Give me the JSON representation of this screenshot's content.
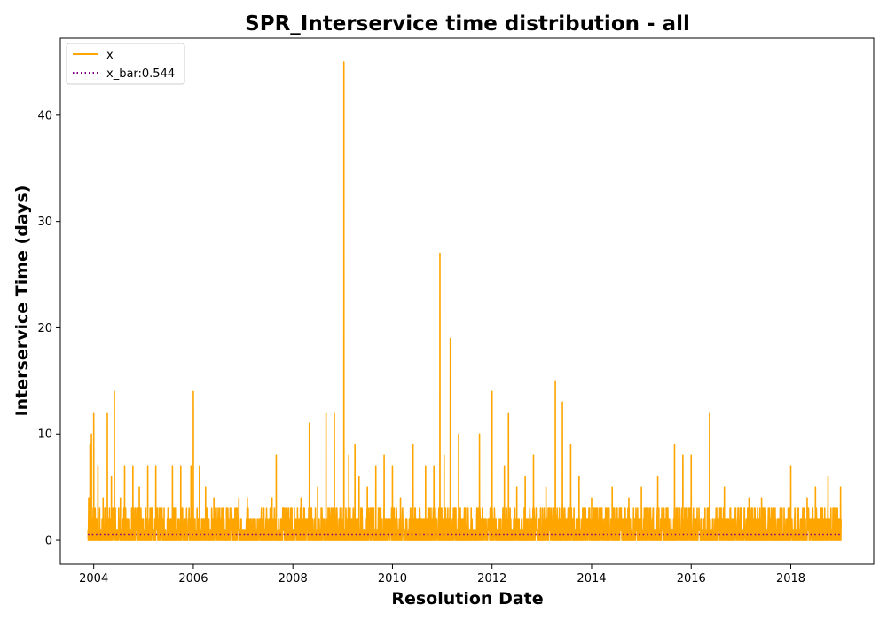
{
  "chart_data": {
    "type": "line",
    "title": "SPR_Interservice time distribution - all",
    "xlabel": "Resolution Date",
    "ylabel": "Interservice Time (days)",
    "xlim": [
      "2003-05-01",
      "2019-09-01"
    ],
    "ylim": [
      -2.25,
      47.25
    ],
    "x_ticks": [
      "2004",
      "2006",
      "2008",
      "2010",
      "2012",
      "2014",
      "2016",
      "2018"
    ],
    "y_ticks": [
      0,
      10,
      20,
      30,
      40
    ],
    "grid": false,
    "legend": {
      "placement": "top-left",
      "entries": [
        {
          "label": "x",
          "color": "#FFA500",
          "style": "solid"
        },
        {
          "label": "x_bar:0.544",
          "color": "#800080",
          "style": "dotted"
        }
      ]
    },
    "series": [
      {
        "name": "x",
        "color": "#FFA500",
        "style": "solid",
        "baseline_band": {
          "from": 0,
          "to": 3
        },
        "peaks": [
          {
            "x": "2003-11-25",
            "y": 4
          },
          {
            "x": "2003-12-05",
            "y": 9
          },
          {
            "x": "2003-12-15",
            "y": 10
          },
          {
            "x": "2004-01-01",
            "y": 12
          },
          {
            "x": "2004-02-01",
            "y": 7
          },
          {
            "x": "2004-03-10",
            "y": 4
          },
          {
            "x": "2004-04-10",
            "y": 12
          },
          {
            "x": "2004-05-10",
            "y": 6
          },
          {
            "x": "2004-06-01",
            "y": 14
          },
          {
            "x": "2004-07-15",
            "y": 4
          },
          {
            "x": "2004-08-15",
            "y": 7
          },
          {
            "x": "2004-10-15",
            "y": 7
          },
          {
            "x": "2004-12-01",
            "y": 5
          },
          {
            "x": "2005-02-01",
            "y": 7
          },
          {
            "x": "2005-04-01",
            "y": 7
          },
          {
            "x": "2005-06-01",
            "y": 3
          },
          {
            "x": "2005-08-01",
            "y": 7
          },
          {
            "x": "2005-10-01",
            "y": 7
          },
          {
            "x": "2005-12-15",
            "y": 7
          },
          {
            "x": "2006-01-01",
            "y": 14
          },
          {
            "x": "2006-02-15",
            "y": 7
          },
          {
            "x": "2006-04-01",
            "y": 5
          },
          {
            "x": "2006-06-01",
            "y": 4
          },
          {
            "x": "2006-09-01",
            "y": 3
          },
          {
            "x": "2006-12-01",
            "y": 4
          },
          {
            "x": "2007-02-01",
            "y": 4
          },
          {
            "x": "2007-06-01",
            "y": 3
          },
          {
            "x": "2007-08-01",
            "y": 4
          },
          {
            "x": "2007-09-01",
            "y": 8
          },
          {
            "x": "2007-11-01",
            "y": 3
          },
          {
            "x": "2008-03-01",
            "y": 4
          },
          {
            "x": "2008-05-01",
            "y": 11
          },
          {
            "x": "2008-07-01",
            "y": 5
          },
          {
            "x": "2008-09-01",
            "y": 12
          },
          {
            "x": "2008-11-01",
            "y": 12
          },
          {
            "x": "2009-01-10",
            "y": 45
          },
          {
            "x": "2009-02-15",
            "y": 8
          },
          {
            "x": "2009-04-01",
            "y": 9
          },
          {
            "x": "2009-05-01",
            "y": 6
          },
          {
            "x": "2009-07-01",
            "y": 5
          },
          {
            "x": "2009-09-01",
            "y": 7
          },
          {
            "x": "2009-11-01",
            "y": 8
          },
          {
            "x": "2010-01-01",
            "y": 7
          },
          {
            "x": "2010-03-01",
            "y": 4
          },
          {
            "x": "2010-06-01",
            "y": 9
          },
          {
            "x": "2010-09-01",
            "y": 7
          },
          {
            "x": "2010-11-01",
            "y": 7
          },
          {
            "x": "2010-12-15",
            "y": 27
          },
          {
            "x": "2011-01-15",
            "y": 8
          },
          {
            "x": "2011-03-01",
            "y": 19
          },
          {
            "x": "2011-05-01",
            "y": 10
          },
          {
            "x": "2011-08-01",
            "y": 3
          },
          {
            "x": "2011-10-01",
            "y": 10
          },
          {
            "x": "2012-01-01",
            "y": 14
          },
          {
            "x": "2012-04-01",
            "y": 7
          },
          {
            "x": "2012-05-01",
            "y": 12
          },
          {
            "x": "2012-07-01",
            "y": 5
          },
          {
            "x": "2012-09-01",
            "y": 6
          },
          {
            "x": "2012-11-01",
            "y": 8
          },
          {
            "x": "2013-02-01",
            "y": 5
          },
          {
            "x": "2013-04-10",
            "y": 15
          },
          {
            "x": "2013-06-01",
            "y": 13
          },
          {
            "x": "2013-08-01",
            "y": 9
          },
          {
            "x": "2013-10-01",
            "y": 6
          },
          {
            "x": "2014-01-01",
            "y": 4
          },
          {
            "x": "2014-06-01",
            "y": 5
          },
          {
            "x": "2014-10-01",
            "y": 4
          },
          {
            "x": "2015-01-01",
            "y": 5
          },
          {
            "x": "2015-05-01",
            "y": 6
          },
          {
            "x": "2015-09-01",
            "y": 9
          },
          {
            "x": "2015-11-01",
            "y": 8
          },
          {
            "x": "2016-01-01",
            "y": 8
          },
          {
            "x": "2016-05-15",
            "y": 12
          },
          {
            "x": "2016-09-01",
            "y": 5
          },
          {
            "x": "2017-01-01",
            "y": 3
          },
          {
            "x": "2017-03-01",
            "y": 4
          },
          {
            "x": "2017-06-01",
            "y": 4
          },
          {
            "x": "2017-09-01",
            "y": 3
          },
          {
            "x": "2018-01-01",
            "y": 7
          },
          {
            "x": "2018-05-01",
            "y": 4
          },
          {
            "x": "2018-07-01",
            "y": 5
          },
          {
            "x": "2018-10-01",
            "y": 6
          },
          {
            "x": "2019-01-01",
            "y": 5
          }
        ],
        "x_range": [
          "2003-11-20",
          "2019-01-05"
        ]
      },
      {
        "name": "x_bar:0.544",
        "color": "#800080",
        "style": "dotted",
        "x": [
          "2003-11-20",
          "2019-01-05"
        ],
        "y": [
          0.544,
          0.544
        ]
      }
    ]
  }
}
